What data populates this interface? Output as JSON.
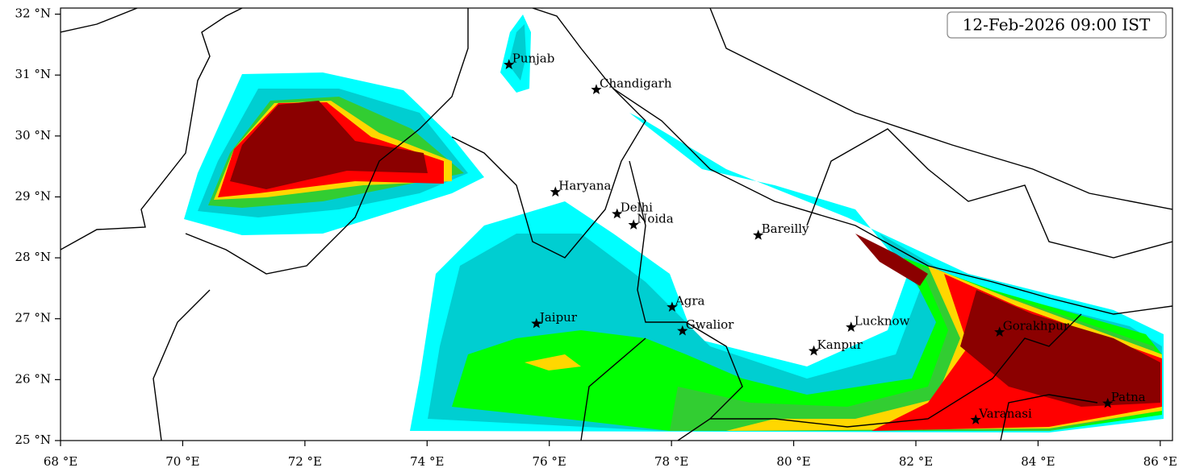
{
  "map": {
    "timestamp": "12-Feb-2026 09:00 IST",
    "xlim": [
      68,
      86.2
    ],
    "ylim": [
      25,
      32.1
    ],
    "xticks": [
      {
        "value": 68,
        "label": "68 °E"
      },
      {
        "value": 70,
        "label": "70 °E"
      },
      {
        "value": 72,
        "label": "72 °E"
      },
      {
        "value": 74,
        "label": "74 °E"
      },
      {
        "value": 76,
        "label": "76 °E"
      },
      {
        "value": 78,
        "label": "78 °E"
      },
      {
        "value": 80,
        "label": "80 °E"
      },
      {
        "value": 82,
        "label": "82 °E"
      },
      {
        "value": 84,
        "label": "84 °E"
      },
      {
        "value": 86,
        "label": "86 °E"
      }
    ],
    "yticks": [
      {
        "value": 25,
        "label": "25 °N"
      },
      {
        "value": 26,
        "label": "26 °N"
      },
      {
        "value": 27,
        "label": "27 °N"
      },
      {
        "value": 28,
        "label": "28 °N"
      },
      {
        "value": 29,
        "label": "29 °N"
      },
      {
        "value": 30,
        "label": "30 °N"
      },
      {
        "value": 31,
        "label": "31 °N"
      },
      {
        "value": 32,
        "label": "32 °N"
      }
    ],
    "cities": [
      {
        "name": "Punjab",
        "lon": 75.34,
        "lat": 31.17
      },
      {
        "name": "Chandigarh",
        "lon": 76.77,
        "lat": 30.76
      },
      {
        "name": "Haryana",
        "lon": 76.1,
        "lat": 29.08
      },
      {
        "name": "Delhi",
        "lon": 77.11,
        "lat": 28.72
      },
      {
        "name": "Noida",
        "lon": 77.38,
        "lat": 28.54
      },
      {
        "name": "Bareilly",
        "lon": 79.42,
        "lat": 28.37
      },
      {
        "name": "Agra",
        "lon": 78.01,
        "lat": 27.19
      },
      {
        "name": "Jaipur",
        "lon": 75.79,
        "lat": 26.92
      },
      {
        "name": "Gwalior",
        "lon": 78.18,
        "lat": 26.8
      },
      {
        "name": "Lucknow",
        "lon": 80.94,
        "lat": 26.86
      },
      {
        "name": "Kanpur",
        "lon": 80.33,
        "lat": 26.47
      },
      {
        "name": "Gorakhpur",
        "lon": 83.37,
        "lat": 26.78
      },
      {
        "name": "Varanasi",
        "lon": 82.98,
        "lat": 25.34
      },
      {
        "name": "Patna",
        "lon": 85.14,
        "lat": 25.61
      }
    ]
  }
}
